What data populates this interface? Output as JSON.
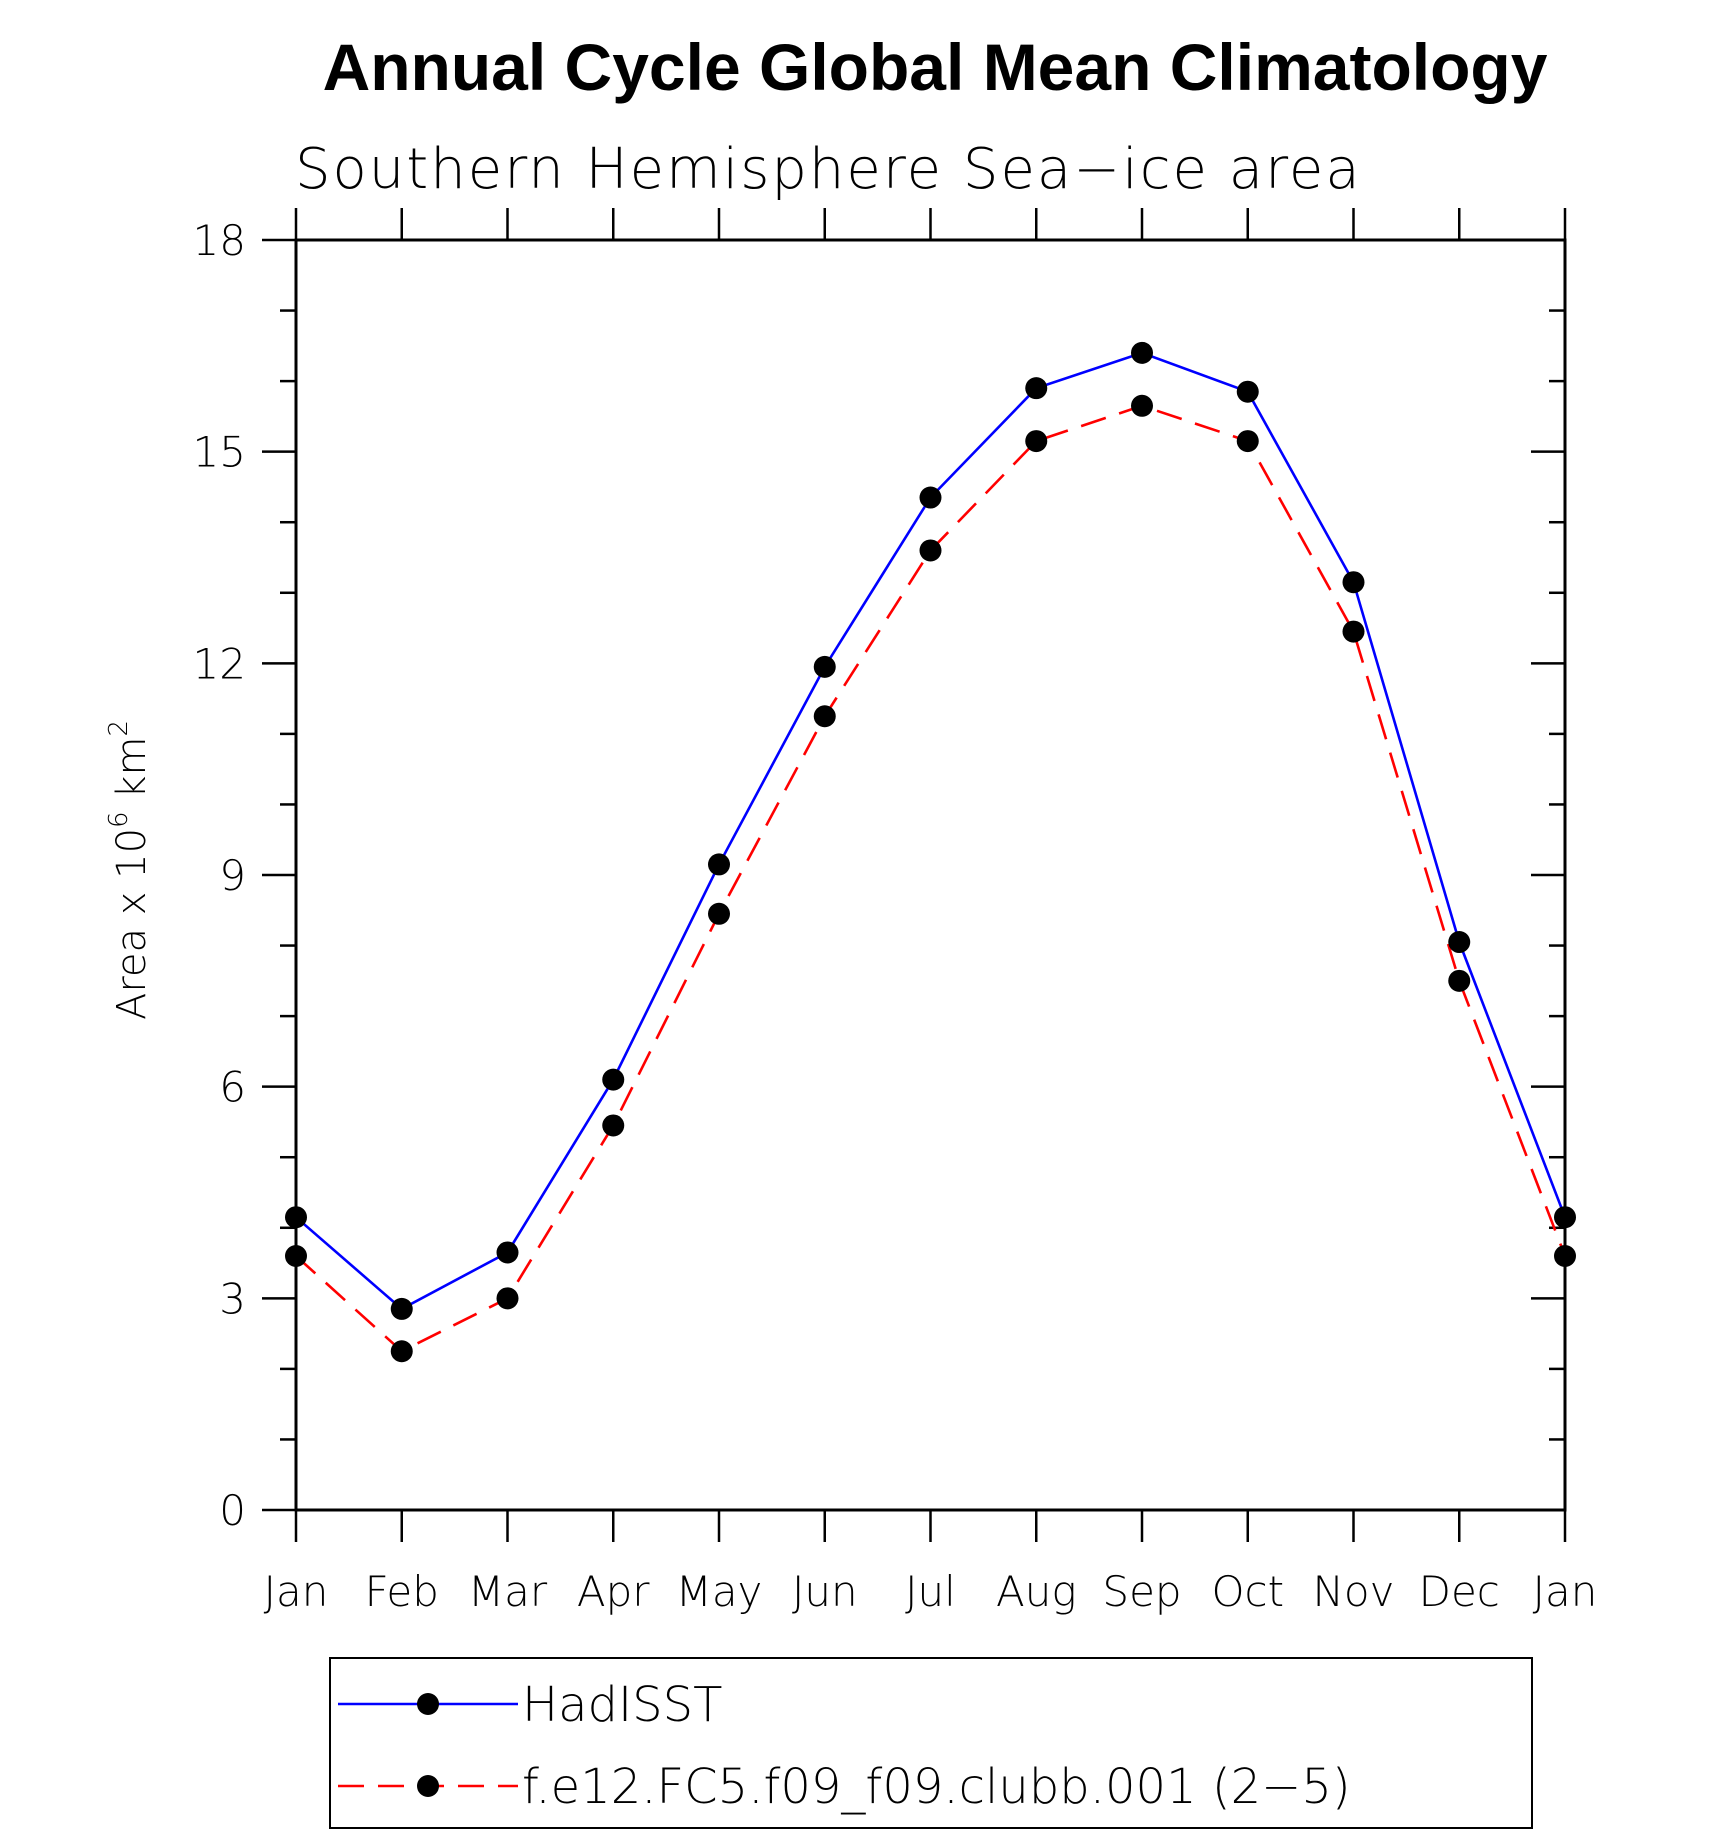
{
  "chart_data": {
    "type": "line",
    "title": "Annual Cycle Global Mean Climatology",
    "subtitle": "Southern Hemisphere Sea−ice area",
    "ylabel_base": "Area x 10",
    "ylabel_exp1": "6",
    "ylabel_unit": " km",
    "ylabel_exp2": "2",
    "categories": [
      "Jan",
      "Feb",
      "Mar",
      "Apr",
      "May",
      "Jun",
      "Jul",
      "Aug",
      "Sep",
      "Oct",
      "Nov",
      "Dec",
      "Jan"
    ],
    "ylim": [
      0,
      18
    ],
    "yticks": [
      "0",
      "3",
      "6",
      "9",
      "12",
      "15",
      "18"
    ],
    "legend_position": "bottom",
    "series": [
      {
        "name": "HadISST",
        "color": "#0000ff",
        "style": "solid",
        "values": [
          4.15,
          2.85,
          3.65,
          6.1,
          9.15,
          11.95,
          14.35,
          15.9,
          16.4,
          15.85,
          13.15,
          8.05,
          4.15
        ]
      },
      {
        "name": "f.e12.FC5.f09_f09.clubb.001 (2−5)",
        "color": "#ff0000",
        "style": "dashed",
        "values": [
          3.6,
          2.25,
          3.0,
          5.45,
          8.45,
          11.25,
          13.6,
          15.15,
          15.65,
          15.15,
          12.45,
          7.5,
          3.6
        ]
      }
    ]
  }
}
